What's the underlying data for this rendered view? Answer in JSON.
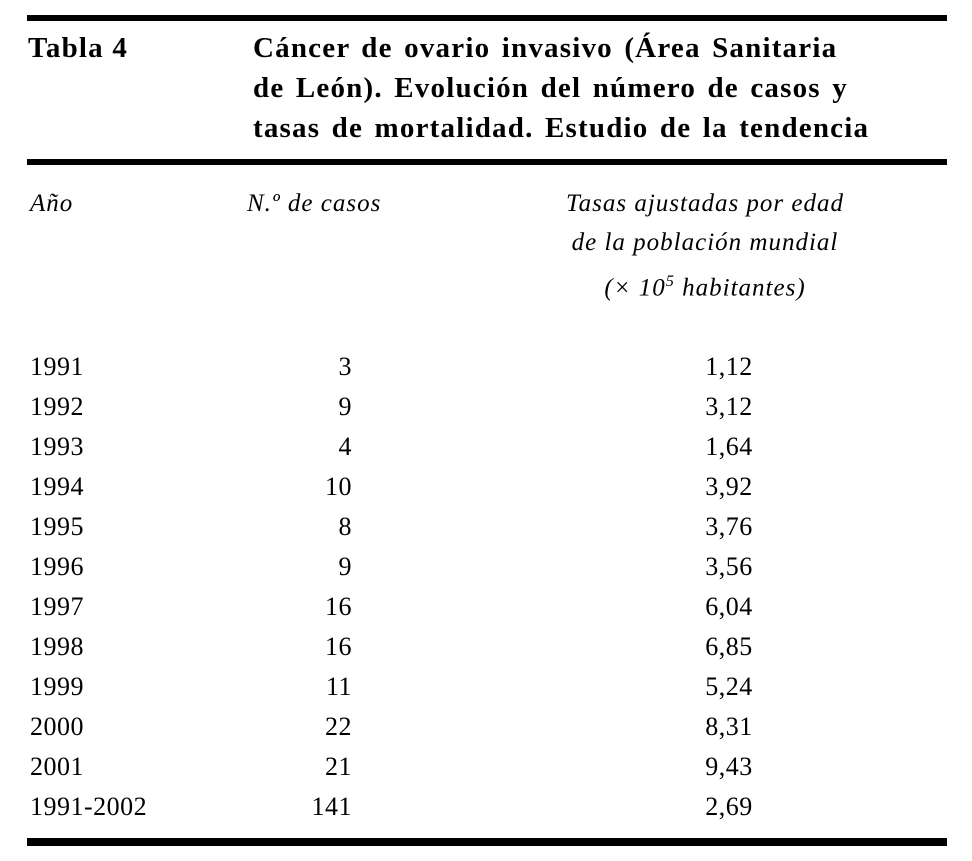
{
  "table": {
    "label": "Tabla 4",
    "title_lines": [
      "Cáncer de ovario invasivo (Área Sanitaria",
      "de León). Evolución del número de casos y",
      "tasas de mortalidad. Estudio de la tendencia"
    ],
    "columns": {
      "year": "Año",
      "cases": "N.º de casos",
      "rate_line1": "Tasas ajustadas por edad",
      "rate_line2": "de la población mundial",
      "rate_line3_prefix": "(× 10",
      "rate_line3_sup": "5",
      "rate_line3_suffix": " habitantes)"
    },
    "rows": [
      {
        "year": "1991",
        "cases": "3",
        "rate": "1,12"
      },
      {
        "year": "1992",
        "cases": "9",
        "rate": "3,12"
      },
      {
        "year": "1993",
        "cases": "4",
        "rate": "1,64"
      },
      {
        "year": "1994",
        "cases": "10",
        "rate": "3,92"
      },
      {
        "year": "1995",
        "cases": "8",
        "rate": "3,76"
      },
      {
        "year": "1996",
        "cases": "9",
        "rate": "3,56"
      },
      {
        "year": "1997",
        "cases": "16",
        "rate": "6,04"
      },
      {
        "year": "1998",
        "cases": "16",
        "rate": "6,85"
      },
      {
        "year": "1999",
        "cases": "11",
        "rate": "5,24"
      },
      {
        "year": "2000",
        "cases": "22",
        "rate": "8,31"
      },
      {
        "year": "2001",
        "cases": "21",
        "rate": "9,43"
      },
      {
        "year": "1991-2002",
        "cases": "141",
        "rate": "2,69"
      }
    ]
  },
  "chart_data": {
    "type": "table",
    "title": "Tabla 4. Cáncer de ovario invasivo (Área Sanitaria de León). Evolución del número de casos y tasas de mortalidad. Estudio de la tendencia",
    "columns": [
      "Año",
      "N.º de casos",
      "Tasas ajustadas por edad de la población mundial (× 10⁵ habitantes)"
    ],
    "rows": [
      [
        "1991",
        3,
        1.12
      ],
      [
        "1992",
        9,
        3.12
      ],
      [
        "1993",
        4,
        1.64
      ],
      [
        "1994",
        10,
        3.92
      ],
      [
        "1995",
        8,
        3.76
      ],
      [
        "1996",
        9,
        3.56
      ],
      [
        "1997",
        16,
        6.04
      ],
      [
        "1998",
        16,
        6.85
      ],
      [
        "1999",
        11,
        5.24
      ],
      [
        "2000",
        22,
        8.31
      ],
      [
        "2001",
        21,
        9.43
      ],
      [
        "1991-2002",
        141,
        2.69
      ]
    ]
  },
  "colors": {
    "text": "#000000",
    "background": "#ffffff",
    "rule": "#000000"
  }
}
